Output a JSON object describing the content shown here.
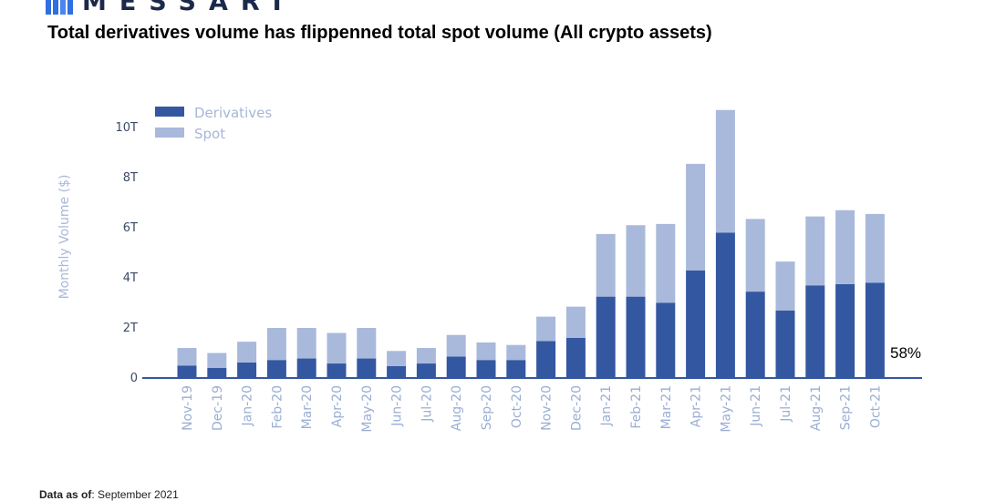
{
  "brand": {
    "name": "MESSARI"
  },
  "title": "Total derivatives volume has flippenned total spot volume (All crypto assets)",
  "footer": {
    "label": "Data as of",
    "value": ": September 2021"
  },
  "colors": {
    "derivatives": "#3457a1",
    "spot": "#a9b9db",
    "axis": "#3457a1"
  },
  "chart_data": {
    "type": "bar",
    "stacked": true,
    "categories": [
      "Nov-19",
      "Dec-19",
      "Jan-20",
      "Feb-20",
      "Mar-20",
      "Apr-20",
      "May-20",
      "Jun-20",
      "Jul-20",
      "Aug-20",
      "Sep-20",
      "Oct-20",
      "Nov-20",
      "Dec-20",
      "Jan-21",
      "Feb-21",
      "Mar-21",
      "Apr-21",
      "May-21",
      "Jun-21",
      "Jul-21",
      "Aug-21",
      "Sep-21",
      "Oct-21"
    ],
    "series": [
      {
        "name": "Derivatives",
        "values": [
          0.5,
          0.4,
          0.62,
          0.72,
          0.78,
          0.58,
          0.78,
          0.48,
          0.58,
          0.86,
          0.72,
          0.72,
          1.48,
          1.6,
          3.25,
          3.25,
          3.0,
          4.3,
          5.8,
          3.45,
          2.7,
          3.7,
          3.75,
          3.8
        ]
      },
      {
        "name": "Spot",
        "values": [
          0.7,
          0.6,
          0.83,
          1.28,
          1.22,
          1.22,
          1.22,
          0.6,
          0.62,
          0.86,
          0.7,
          0.6,
          0.97,
          1.25,
          2.5,
          2.85,
          3.15,
          4.25,
          4.9,
          2.9,
          1.95,
          2.75,
          2.95,
          2.75
        ]
      }
    ],
    "ylabel": "Monthly Volume ($)",
    "xlabel": "",
    "ylim": [
      0,
      11
    ],
    "yticks": [
      0,
      2,
      4,
      6,
      8,
      10
    ],
    "ytick_labels": [
      "0",
      "2T",
      "4T",
      "6T",
      "8T",
      "10T"
    ],
    "legend_position": "top-left",
    "annotation": "58%"
  }
}
